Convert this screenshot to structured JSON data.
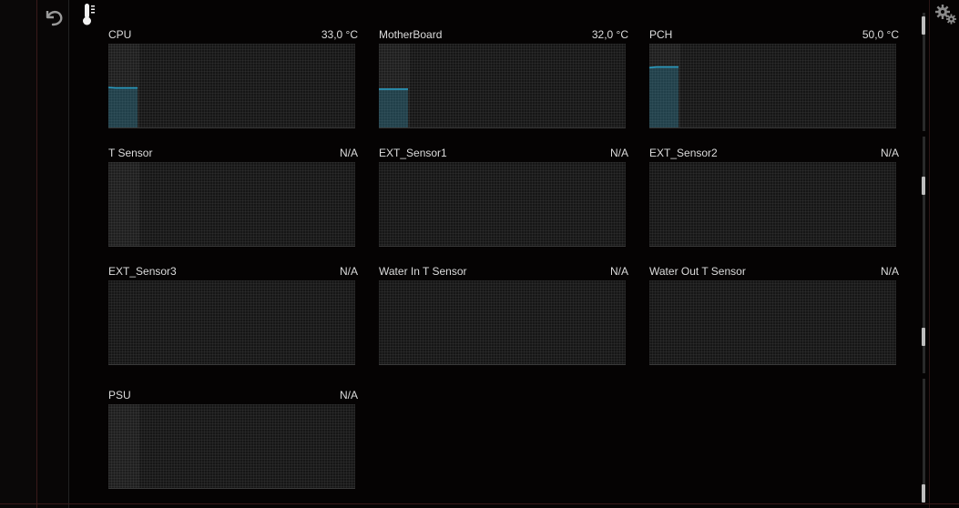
{
  "accent_color": "#2a9bbf",
  "toolbar": {
    "back_icon": "undo-arrow-icon",
    "section_icon": "thermometer-icon",
    "settings_icon": "gears-icon"
  },
  "sensors": [
    {
      "name": "CPU",
      "value": "33,0 °C",
      "history": [
        33.5,
        33.0,
        33.0,
        33.0,
        33.0
      ]
    },
    {
      "name": "MotherBoard",
      "value": "32,0 °C",
      "history": [
        32.0,
        32.0,
        32.0,
        32.0,
        32.0
      ]
    },
    {
      "name": "PCH",
      "value": "50,0 °C",
      "history": [
        50.0,
        50.5,
        50.5,
        50.5,
        50.5
      ]
    },
    {
      "name": "T Sensor",
      "value": "N/A",
      "history": []
    },
    {
      "name": "EXT_Sensor1",
      "value": "N/A",
      "history": []
    },
    {
      "name": "EXT_Sensor2",
      "value": "N/A",
      "history": []
    },
    {
      "name": "EXT_Sensor3",
      "value": "N/A",
      "history": []
    },
    {
      "name": "Water In T Sensor",
      "value": "N/A",
      "history": []
    },
    {
      "name": "Water Out T Sensor",
      "value": "N/A",
      "history": []
    },
    {
      "name": "PSU",
      "value": "N/A",
      "history": []
    }
  ]
}
